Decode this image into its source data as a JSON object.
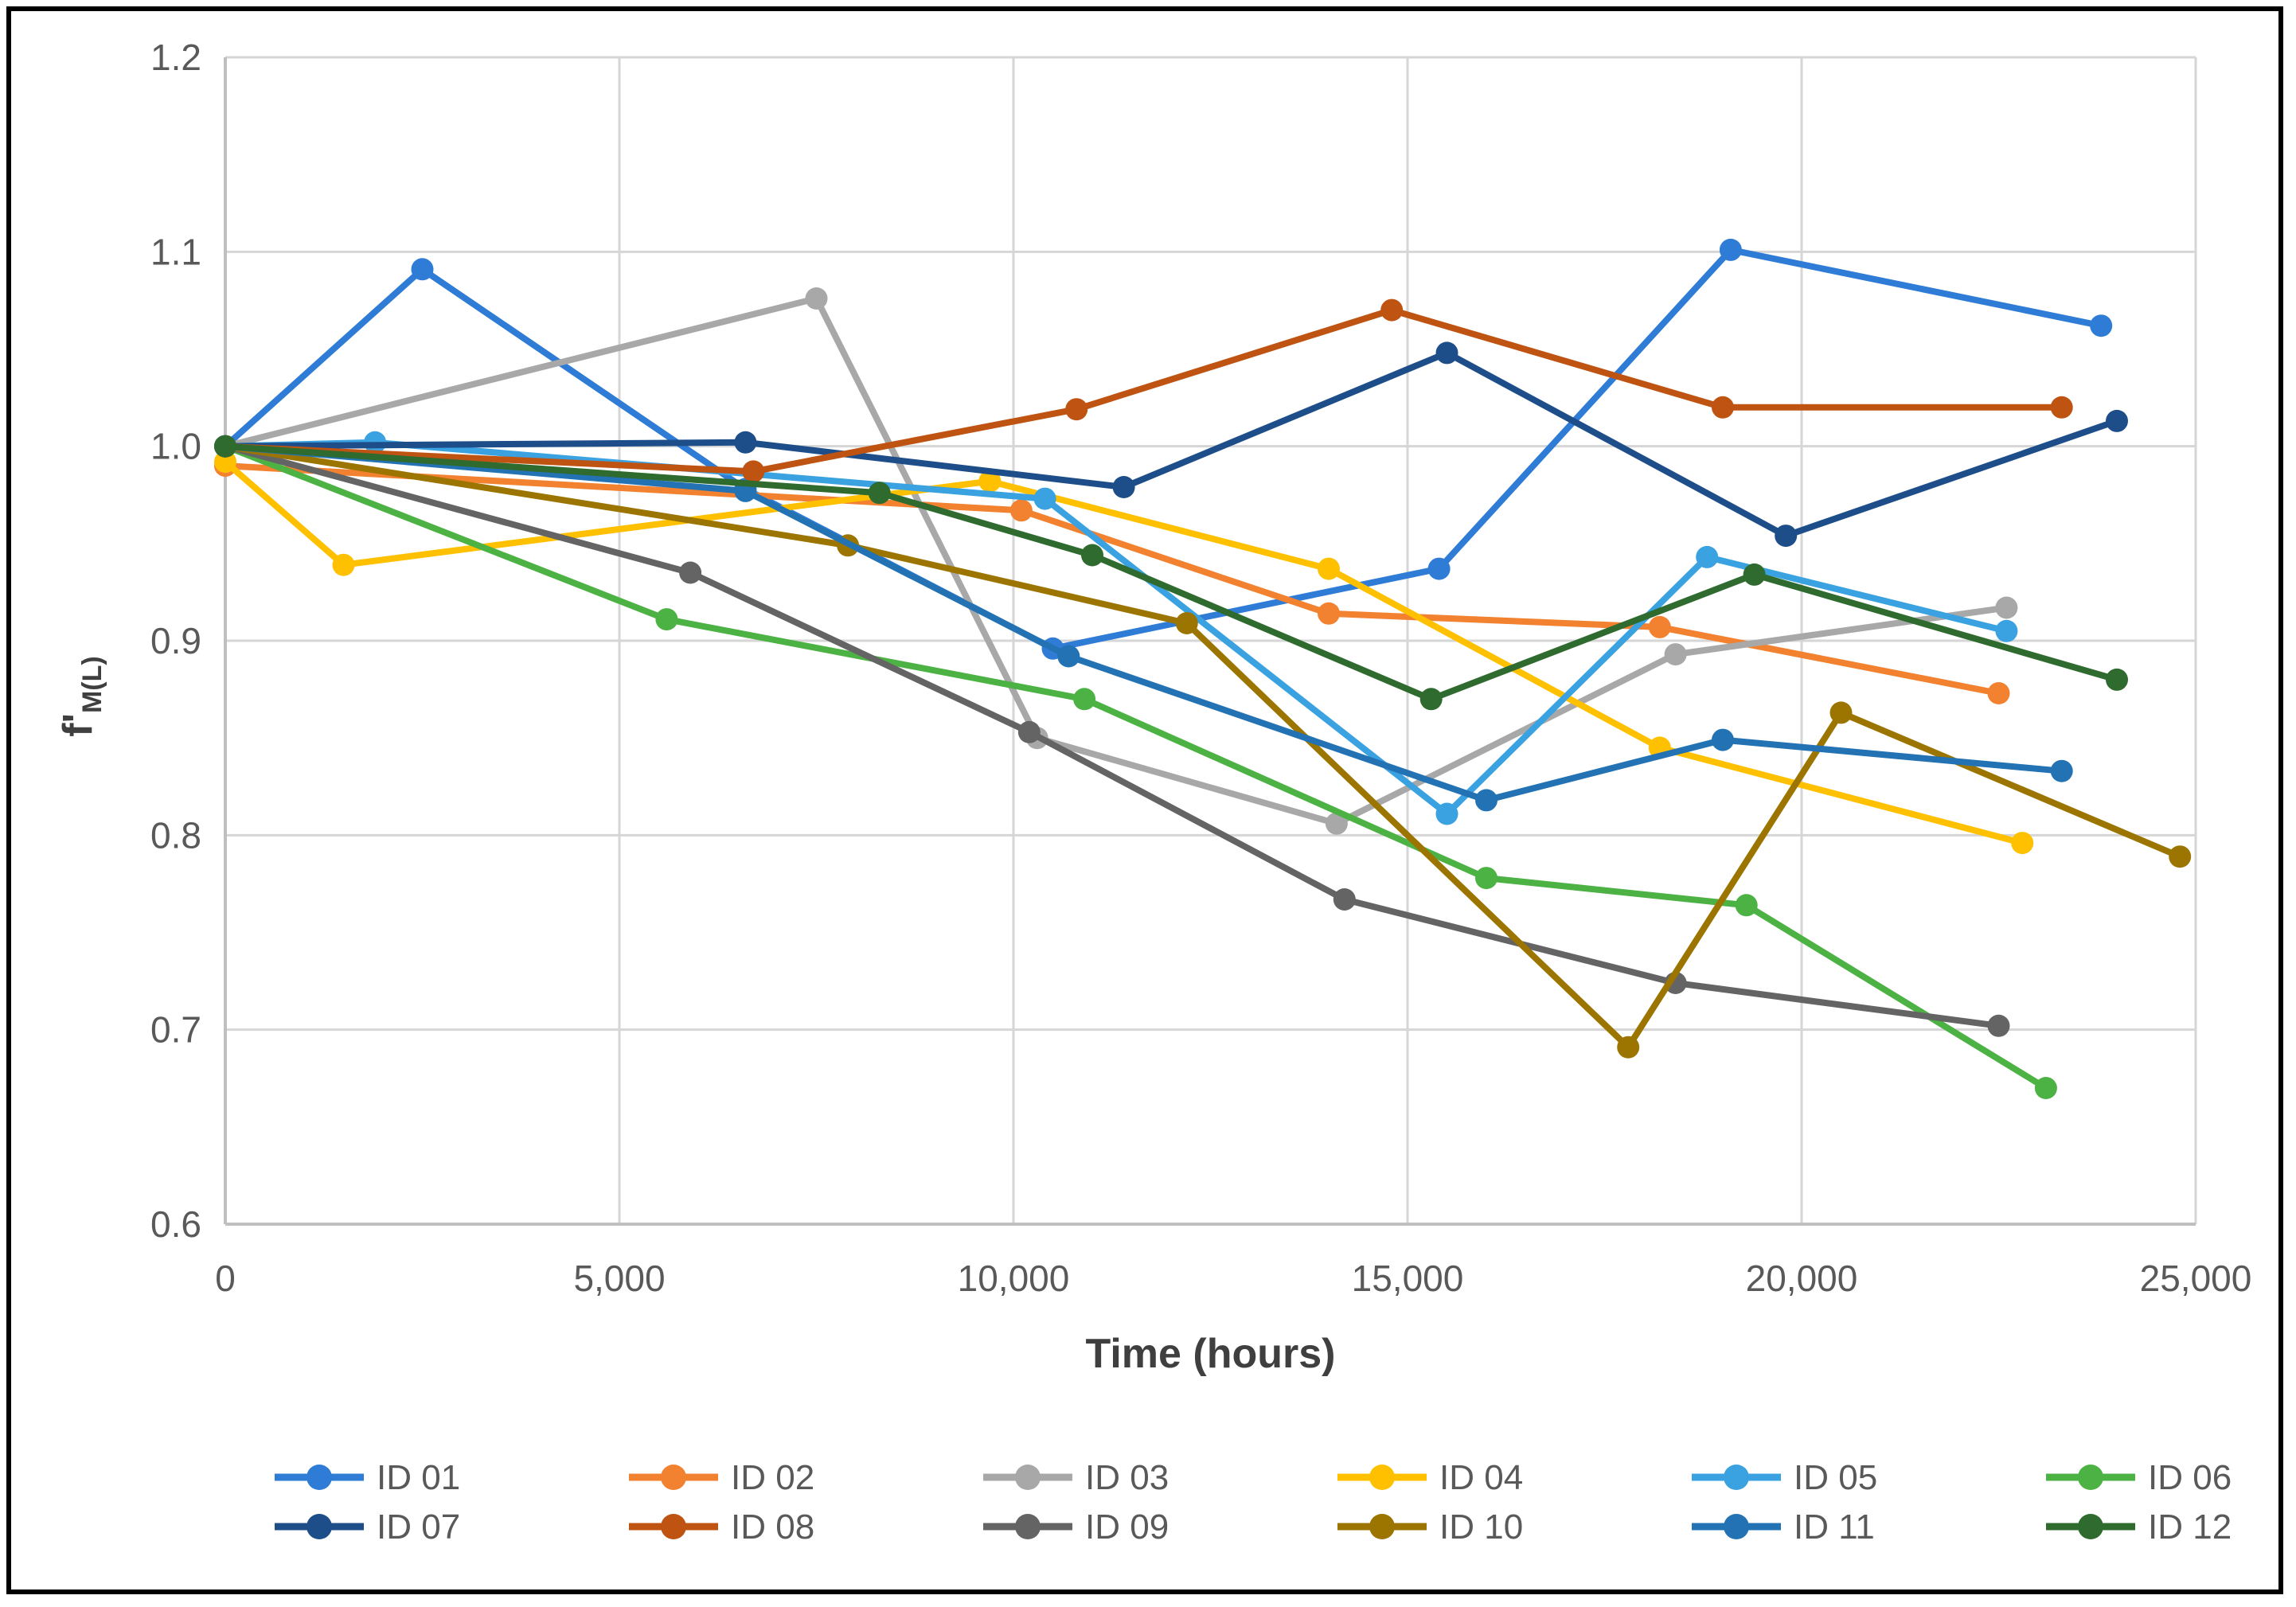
{
  "ui": {
    "background": "#FFFFFF",
    "frame_border": "#000000",
    "gridline": "#D6D6D6",
    "axis_line": "#BFBFBF",
    "tick_text": "#595959",
    "title_text": "#3F3F3F",
    "legend_text": "#595959"
  },
  "chart_data": {
    "type": "line",
    "title": "",
    "xlabel": "Time (hours)",
    "ylabel_main": "f'",
    "ylabel_sub": "M(L)",
    "xlim": [
      0,
      25000
    ],
    "ylim": [
      0.6,
      1.2
    ],
    "grid": true,
    "legend_position": "bottom",
    "x_ticks": [
      {
        "value": 0,
        "label": "0"
      },
      {
        "value": 5000,
        "label": "5,000"
      },
      {
        "value": 10000,
        "label": "10,000"
      },
      {
        "value": 15000,
        "label": "15,000"
      },
      {
        "value": 20000,
        "label": "20,000"
      },
      {
        "value": 25000,
        "label": "25,000"
      }
    ],
    "y_ticks": [
      {
        "value": 1.2,
        "label": "1.2"
      },
      {
        "value": 1.1,
        "label": "1.1"
      },
      {
        "value": 1.0,
        "label": "1.0"
      },
      {
        "value": 0.9,
        "label": "0.9"
      },
      {
        "value": 0.8,
        "label": "0.8"
      },
      {
        "value": 0.7,
        "label": "0.7"
      },
      {
        "value": 0.6,
        "label": "0.6"
      }
    ],
    "series": [
      {
        "name": "ID 01",
        "color": "#2E7CD6",
        "points": [
          [
            0,
            1.0
          ],
          [
            2500,
            1.091
          ],
          [
            6600,
            0.978
          ],
          [
            10500,
            0.896
          ],
          [
            15400,
            0.937
          ],
          [
            19100,
            1.101
          ],
          [
            23800,
            1.062
          ]
        ]
      },
      {
        "name": "ID 02",
        "color": "#F28130",
        "points": [
          [
            0,
            0.99
          ],
          [
            10100,
            0.967
          ],
          [
            14000,
            0.914
          ],
          [
            18200,
            0.907
          ],
          [
            22500,
            0.873
          ]
        ]
      },
      {
        "name": "ID 03",
        "color": "#A8A8A8",
        "points": [
          [
            0,
            1.0
          ],
          [
            7500,
            1.076
          ],
          [
            10300,
            0.85
          ],
          [
            14100,
            0.806
          ],
          [
            18400,
            0.893
          ],
          [
            22600,
            0.917
          ]
        ]
      },
      {
        "name": "ID 04",
        "color": "#FFC000",
        "points": [
          [
            0,
            0.992
          ],
          [
            1500,
            0.939
          ],
          [
            9700,
            0.982
          ],
          [
            14000,
            0.937
          ],
          [
            18200,
            0.845
          ],
          [
            22800,
            0.796
          ]
        ]
      },
      {
        "name": "ID 05",
        "color": "#3AA2E0",
        "points": [
          [
            0,
            1.0
          ],
          [
            1900,
            1.002
          ],
          [
            10400,
            0.973
          ],
          [
            15500,
            0.811
          ],
          [
            18800,
            0.943
          ],
          [
            22600,
            0.905
          ]
        ]
      },
      {
        "name": "ID 06",
        "color": "#4CB244",
        "points": [
          [
            0,
            1.0
          ],
          [
            5600,
            0.911
          ],
          [
            10900,
            0.87
          ],
          [
            16000,
            0.778
          ],
          [
            19300,
            0.764
          ],
          [
            23100,
            0.67
          ]
        ]
      },
      {
        "name": "ID 07",
        "color": "#1D4E89",
        "points": [
          [
            0,
            1.0
          ],
          [
            6600,
            1.002
          ],
          [
            11400,
            0.979
          ],
          [
            15500,
            1.048
          ],
          [
            19800,
            0.954
          ],
          [
            24000,
            1.013
          ]
        ]
      },
      {
        "name": "ID 08",
        "color": "#BF5312",
        "points": [
          [
            0,
            1.0
          ],
          [
            6700,
            0.987
          ],
          [
            10800,
            1.019
          ],
          [
            14800,
            1.07
          ],
          [
            19000,
            1.02
          ],
          [
            23300,
            1.02
          ]
        ]
      },
      {
        "name": "ID 09",
        "color": "#646464",
        "points": [
          [
            0,
            1.0
          ],
          [
            5900,
            0.935
          ],
          [
            10200,
            0.853
          ],
          [
            14200,
            0.767
          ],
          [
            18400,
            0.724
          ],
          [
            22500,
            0.702
          ]
        ]
      },
      {
        "name": "ID 10",
        "color": "#9C7500",
        "points": [
          [
            0,
            1.0
          ],
          [
            7900,
            0.949
          ],
          [
            12200,
            0.909
          ],
          [
            17800,
            0.691
          ],
          [
            20500,
            0.863
          ],
          [
            24800,
            0.789
          ]
        ]
      },
      {
        "name": "ID 11",
        "color": "#2272B4",
        "points": [
          [
            0,
            1.0
          ],
          [
            6600,
            0.977
          ],
          [
            10700,
            0.892
          ],
          [
            16000,
            0.818
          ],
          [
            19000,
            0.849
          ],
          [
            23300,
            0.833
          ]
        ]
      },
      {
        "name": "ID 12",
        "color": "#2F6B2F",
        "points": [
          [
            0,
            1.0
          ],
          [
            8300,
            0.976
          ],
          [
            11000,
            0.944
          ],
          [
            15300,
            0.87
          ],
          [
            19400,
            0.934
          ],
          [
            24000,
            0.88
          ]
        ]
      }
    ],
    "legend_rows": [
      [
        "ID 01",
        "ID 02",
        "ID 03",
        "ID 04",
        "ID 05",
        "ID 06"
      ],
      [
        "ID 07",
        "ID 08",
        "ID 09",
        "ID 10",
        "ID 11",
        "ID 12"
      ]
    ]
  }
}
